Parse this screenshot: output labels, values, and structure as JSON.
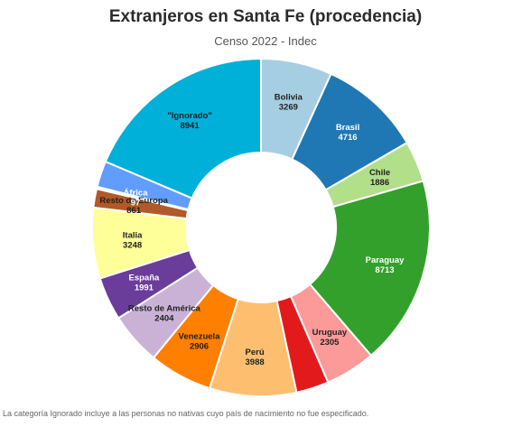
{
  "chart_data": {
    "type": "pie",
    "title": "Extranjeros en Santa Fe (procedencia)",
    "subtitle": "Censo 2022 - Indec",
    "note": "La categoría Ignorado incluye a las personas no nativas cuyo país de nacimiento no fue especificado.",
    "slices": [
      {
        "label": "Bolivia",
        "value": 3269,
        "color": "#a6cee3",
        "text_color": "#222222"
      },
      {
        "label": "Brasil",
        "value": 4716,
        "color": "#1f78b4",
        "text_color": "#ffffff"
      },
      {
        "label": "Chile",
        "value": 1886,
        "color": "#b2df8a",
        "text_color": "#222222"
      },
      {
        "label": "Paraguay",
        "value": 8713,
        "color": "#33a02c",
        "text_color": "#ffffff"
      },
      {
        "label": "Uruguay",
        "value": 2305,
        "color": "#fb9a99",
        "text_color": "#222222"
      },
      {
        "label": "",
        "value": 1500,
        "color": "#e31a1c",
        "text_color": "#ffffff"
      },
      {
        "label": "Perú",
        "value": 3988,
        "color": "#fdbf6f",
        "text_color": "#222222"
      },
      {
        "label": "Venezuela",
        "value": 2906,
        "color": "#ff7f00",
        "text_color": "#222222"
      },
      {
        "label": "Resto de América",
        "value": 2404,
        "color": "#cab2d6",
        "text_color": "#222222"
      },
      {
        "label": "España",
        "value": 1991,
        "color": "#6a3d9a",
        "text_color": "#ffffff"
      },
      {
        "label": "Italia",
        "value": 3248,
        "color": "#ffff99",
        "text_color": "#222222"
      },
      {
        "label": "Resto de Europa",
        "value": 861,
        "color": "#b15928",
        "text_color": "#222222"
      },
      {
        "label": "África",
        "value": 97,
        "color": "#b2df8a",
        "text_color": "#ffffff"
      },
      {
        "label": "",
        "value": 1200,
        "color": "#619cff",
        "text_color": "#ffffff"
      },
      {
        "label": "\"Ignorado\"",
        "value": 8941,
        "color": "#00b0d8",
        "text_color": "#222222"
      }
    ]
  }
}
